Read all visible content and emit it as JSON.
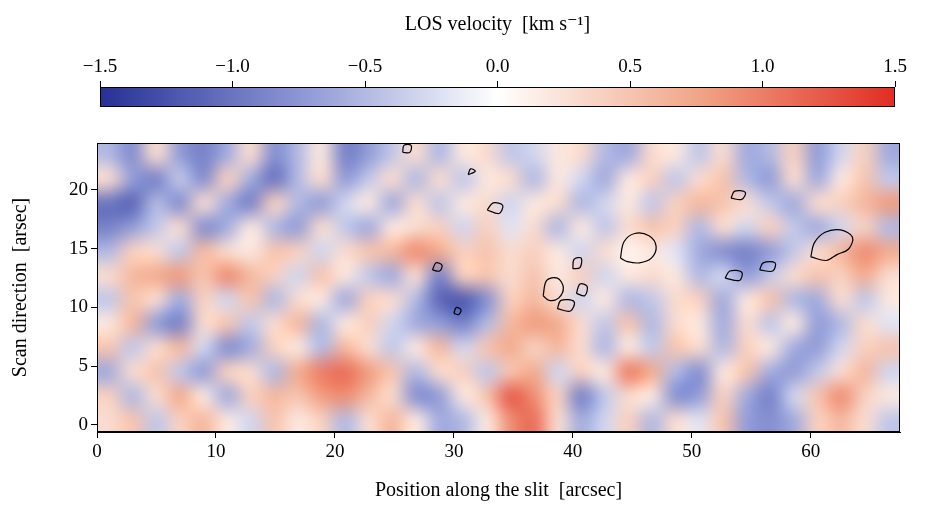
{
  "chart_data": {
    "type": "heatmap",
    "x_label": "Position along the slit  [arcsec]",
    "y_label": "Scan direction  [arsec]",
    "xlim": [
      0,
      67.5
    ],
    "xticks": [
      0,
      10,
      20,
      30,
      40,
      50,
      60
    ],
    "ylim": [
      -0.6,
      24
    ],
    "yticks": [
      0,
      5,
      10,
      15,
      20
    ],
    "grid": false,
    "colorbar": {
      "title": "LOS velocity  [km s⁻¹]",
      "range": [
        -1.5,
        1.5
      ],
      "ticks": [
        {
          "value": -1.5,
          "label": "−1.5"
        },
        {
          "value": -1,
          "label": "−1.0"
        },
        {
          "value": -0.5,
          "label": "−0.5"
        },
        {
          "value": 0,
          "label": "0.0"
        },
        0.5,
        {
          "value": 1,
          "label": "1.0"
        },
        1.5
      ]
    },
    "cells": [
      [
        0.3,
        0.5,
        -0.4,
        0.4,
        0.6,
        0.2,
        -0.3,
        0.5,
        0.2,
        0.4,
        -0.5,
        0.3,
        0.6,
        0.2,
        -0.6,
        -0.5,
        0.2,
        0.9,
        1.1,
        0.3,
        -0.6,
        -0.3,
        0.4,
        -0.5,
        0.3,
        -0.2,
        0.5,
        -0.7,
        -0.8,
        -0.6,
        0.4,
        0.6,
        0.3,
        -0.4
      ],
      [
        0.4,
        -0.5,
        0.3,
        0.7,
        0.2,
        -0.6,
        0.4,
        0.6,
        0.5,
        0.8,
        0.9,
        0.6,
        0.3,
        -0.8,
        -0.7,
        0.2,
        0.5,
        1.2,
        0.9,
        0.4,
        -0.9,
        -0.4,
        0.3,
        0.2,
        -0.8,
        -0.7,
        0.4,
        -0.6,
        -0.9,
        -0.3,
        0.5,
        0.9,
        0.4,
        0.2
      ],
      [
        -0.6,
        0.3,
        0.5,
        -0.4,
        -0.7,
        0.4,
        0.3,
        -0.5,
        0.7,
        1.0,
        1.1,
        0.8,
        0.5,
        -0.5,
        0.3,
        0.4,
        -0.4,
        0.5,
        0.7,
        -0.3,
        0.4,
        0.2,
        1.0,
        0.7,
        -0.5,
        -0.8,
        0.2,
        0.5,
        -0.6,
        -0.7,
        -0.4,
        0.3,
        0.6,
        -0.3
      ],
      [
        0.5,
        -0.4,
        0.3,
        0.6,
        -0.3,
        -0.8,
        -0.6,
        0.4,
        0.2,
        -0.5,
        0.6,
        0.3,
        -0.4,
        0.2,
        0.6,
        -0.3,
        0.5,
        0.7,
        0.4,
        0.6,
        0.3,
        -0.5,
        0.2,
        -0.4,
        0.5,
        0.3,
        -0.5,
        0.4,
        0.2,
        -0.6,
        -0.7,
        -0.3,
        0.4,
        0.5
      ],
      [
        0.2,
        0.6,
        -0.7,
        -0.9,
        0.3,
        0.5,
        -0.4,
        0.3,
        0.6,
        -0.5,
        0.2,
        0.4,
        -0.3,
        -0.6,
        -0.7,
        -0.9,
        -0.5,
        0.6,
        0.8,
        0.7,
        0.3,
        -0.4,
        0.5,
        -0.5,
        0.3,
        0.2,
        -0.6,
        0.3,
        -0.4,
        0.2,
        -0.7,
        -0.5,
        0.3,
        -0.2
      ],
      [
        -0.4,
        0.5,
        0.3,
        -0.6,
        0.4,
        -0.3,
        0.5,
        -0.5,
        0.3,
        0.2,
        -0.6,
        0.4,
        0.3,
        -0.5,
        -1.1,
        -1.2,
        -0.8,
        0.4,
        0.6,
        0.3,
        -0.3,
        0.2,
        -0.5,
        -0.4,
        0.3,
        0.4,
        -0.6,
        0.2,
        0.5,
        -0.5,
        -0.6,
        0.3,
        -0.4,
        0.2
      ],
      [
        0.3,
        0.6,
        0.7,
        0.8,
        0.5,
        0.9,
        0.6,
        0.4,
        -0.3,
        0.5,
        0.2,
        -0.4,
        -0.6,
        0.3,
        -0.9,
        0.4,
        0.5,
        0.3,
        0.5,
        0.2,
        0.4,
        -0.3,
        0.2,
        0.3,
        0.2,
        -0.5,
        -0.3,
        -0.7,
        -0.4,
        0.3,
        0.5,
        0.4,
        0.7,
        0.3
      ],
      [
        -0.5,
        0.4,
        0.3,
        -0.4,
        0.6,
        0.3,
        0.2,
        0.5,
        0.4,
        -0.3,
        0.3,
        0.5,
        0.6,
        0.9,
        0.7,
        0.4,
        0.5,
        0.3,
        0.4,
        0.2,
        -0.3,
        0.3,
        0.1,
        0.2,
        -0.2,
        -0.6,
        -0.8,
        -0.9,
        -0.7,
        -0.4,
        0.3,
        0.6,
        0.9,
        0.7
      ],
      [
        -0.9,
        -0.7,
        -0.4,
        0.3,
        -0.8,
        -0.6,
        0.2,
        -0.5,
        -0.7,
        0.3,
        -0.4,
        -0.6,
        0.2,
        0.3,
        0.4,
        -0.3,
        0.4,
        -0.2,
        0.3,
        -0.5,
        0.2,
        -0.4,
        0.3,
        0.5,
        0.4,
        -0.5,
        0.3,
        -0.3,
        0.4,
        -0.4,
        -0.6,
        -0.3,
        0.4,
        -0.5
      ],
      [
        -1.0,
        -1.1,
        -0.5,
        -0.8,
        0.3,
        -0.6,
        -0.9,
        0.4,
        -0.5,
        -0.7,
        -0.3,
        0.2,
        -0.6,
        0.3,
        -0.4,
        0.2,
        0.3,
        -0.3,
        0.2,
        0.3,
        -0.5,
        -0.3,
        0.2,
        -0.4,
        0.4,
        0.6,
        0.5,
        0.3,
        -0.4,
        -0.6,
        0.3,
        0.4,
        0.6,
        0.8
      ],
      [
        0.3,
        -0.7,
        -0.9,
        -0.4,
        -0.8,
        0.4,
        -0.6,
        -1.0,
        -0.5,
        0.3,
        -0.7,
        -0.4,
        0.3,
        -0.5,
        0.3,
        -0.4,
        0.2,
        0.3,
        -0.5,
        0.2,
        -0.3,
        -0.6,
        0.2,
        0.4,
        -0.4,
        0.3,
        0.5,
        -0.5,
        -0.7,
        0.3,
        -0.6,
        0.2,
        0.5,
        -0.4
      ],
      [
        -0.5,
        -0.8,
        0.3,
        -0.7,
        -0.9,
        -0.6,
        0.3,
        -0.8,
        -0.5,
        0.2,
        -0.9,
        -0.7,
        -0.4,
        0.3,
        -0.5,
        0.2,
        0.3,
        -0.4,
        -0.3,
        0.2,
        0.3,
        -0.5,
        -0.6,
        0.3,
        0.2,
        -0.4,
        0.3,
        -0.6,
        -0.5,
        0.4,
        -0.7,
        -0.3,
        0.4,
        -0.6
      ]
    ],
    "contours": [
      [
        [
          44,
          14.2
        ],
        [
          44.3,
          15.6
        ],
        [
          45.2,
          16.3
        ],
        [
          46.4,
          16.1
        ],
        [
          47,
          15.2
        ],
        [
          46.6,
          14.2
        ],
        [
          45.6,
          13.8
        ],
        [
          44.6,
          13.9
        ],
        [
          44,
          14.2
        ]
      ],
      [
        [
          60,
          14.3
        ],
        [
          60.3,
          15.5
        ],
        [
          61.2,
          16.4
        ],
        [
          62.5,
          16.6
        ],
        [
          63.5,
          16
        ],
        [
          63.2,
          15
        ],
        [
          62.2,
          14.5
        ],
        [
          61.3,
          14
        ],
        [
          60,
          14.3
        ]
      ],
      [
        [
          37.5,
          11
        ],
        [
          37.8,
          12.3
        ],
        [
          38.7,
          12.5
        ],
        [
          39.2,
          11.7
        ],
        [
          38.8,
          10.8
        ],
        [
          38,
          10.6
        ],
        [
          37.5,
          11
        ]
      ],
      [
        [
          38.7,
          9.9
        ],
        [
          39,
          10.6
        ],
        [
          40.1,
          10.5
        ],
        [
          39.8,
          9.7
        ],
        [
          38.7,
          9.9
        ]
      ],
      [
        [
          40.3,
          11.2
        ],
        [
          40.6,
          12
        ],
        [
          41.2,
          11.8
        ],
        [
          41,
          11
        ],
        [
          40.3,
          11.2
        ]
      ],
      [
        [
          32.8,
          18.3
        ],
        [
          33.3,
          18.9
        ],
        [
          34.1,
          18.7
        ],
        [
          33.8,
          18
        ],
        [
          32.8,
          18.3
        ]
      ],
      [
        [
          28.2,
          13.2
        ],
        [
          28.5,
          13.8
        ],
        [
          29,
          13.6
        ],
        [
          28.8,
          13.1
        ],
        [
          28.2,
          13.2
        ]
      ],
      [
        [
          30,
          9.5
        ],
        [
          30.2,
          10
        ],
        [
          30.6,
          9.8
        ],
        [
          30.4,
          9.4
        ],
        [
          30,
          9.5
        ]
      ],
      [
        [
          53.3,
          19.3
        ],
        [
          53.6,
          19.9
        ],
        [
          54.5,
          19.8
        ],
        [
          54.2,
          19.2
        ],
        [
          53.3,
          19.3
        ]
      ],
      [
        [
          52.8,
          12.5
        ],
        [
          53.2,
          13.1
        ],
        [
          54.2,
          13
        ],
        [
          54,
          12.3
        ],
        [
          52.8,
          12.5
        ]
      ],
      [
        [
          55.7,
          13.2
        ],
        [
          56,
          13.8
        ],
        [
          57,
          13.8
        ],
        [
          56.8,
          13.1
        ],
        [
          55.7,
          13.2
        ]
      ],
      [
        [
          40,
          13.3
        ],
        [
          40.1,
          14.1
        ],
        [
          40.7,
          14.2
        ],
        [
          40.6,
          13.4
        ],
        [
          40,
          13.3
        ]
      ],
      [
        [
          25.7,
          23.2
        ],
        [
          25.8,
          23.8
        ],
        [
          26.4,
          23.8
        ],
        [
          26.3,
          23.2
        ],
        [
          25.7,
          23.2
        ]
      ],
      [
        [
          31.2,
          21.3
        ],
        [
          31.4,
          21.8
        ],
        [
          31.8,
          21.6
        ],
        [
          31.2,
          21.3
        ]
      ]
    ]
  }
}
